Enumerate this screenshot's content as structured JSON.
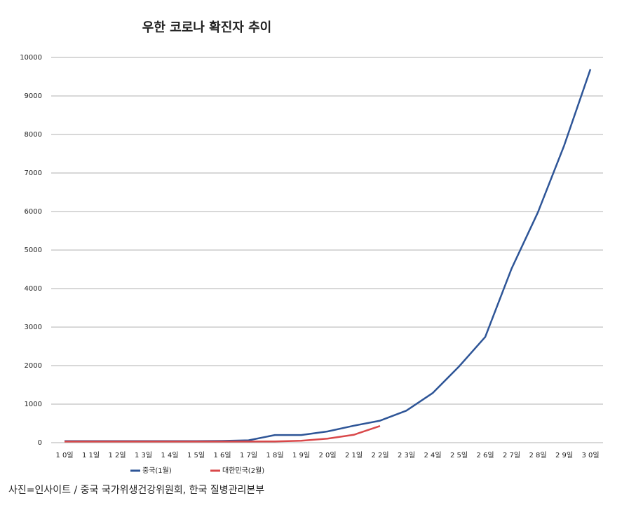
{
  "chart_data": {
    "type": "line",
    "title": "우한 코로나 확진자 추이",
    "categories": [
      "1 0일",
      "1 1일",
      "1 2일",
      "1 3일",
      "1 4일",
      "1 5일",
      "1 6일",
      "1 7일",
      "1 8일",
      "1 9일",
      "2 0일",
      "2 1일",
      "2 2일",
      "2 3일",
      "2 4일",
      "2 5일",
      "2 6일",
      "2 7일",
      "2 8일",
      "2 9일",
      "3 0일"
    ],
    "series": [
      {
        "name": "중국(1월)",
        "color": "#2e5597",
        "values": [
          41,
          41,
          41,
          41,
          41,
          41,
          45,
          62,
          198,
          198,
          291,
          440,
          571,
          830,
          1287,
          1975,
          2744,
          4515,
          5974,
          7711,
          9692
        ]
      },
      {
        "name": "대한민국(2월)",
        "color": "#d9484a",
        "values": [
          30,
          30,
          30,
          30,
          30,
          30,
          30,
          30,
          31,
          51,
          104,
          204,
          433,
          null,
          null,
          null,
          null,
          null,
          null,
          null,
          null
        ]
      }
    ],
    "ylim": [
      0,
      10000
    ],
    "yticks": [
      0,
      1000,
      2000,
      3000,
      4000,
      5000,
      6000,
      7000,
      8000,
      9000,
      10000
    ],
    "grid": true,
    "legend": "bottom"
  },
  "caption": "사진=인사이트 / 중국 국가위생건강위원회, 한국 질병관리본부"
}
